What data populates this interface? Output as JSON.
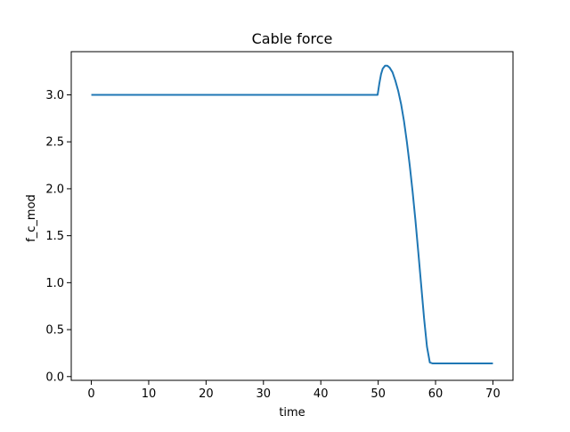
{
  "chart_data": {
    "type": "line",
    "title": "Cable force",
    "xlabel": "time",
    "ylabel": "f_c_mod",
    "xlim": [
      -3.5,
      73.5
    ],
    "ylim": [
      -0.04,
      3.46
    ],
    "xticks": [
      0,
      10,
      20,
      30,
      40,
      50,
      60,
      70
    ],
    "xtick_labels": [
      "0",
      "10",
      "20",
      "30",
      "40",
      "50",
      "60",
      "70"
    ],
    "yticks": [
      0.0,
      0.5,
      1.0,
      1.5,
      2.0,
      2.5,
      3.0
    ],
    "ytick_labels": [
      "0.0",
      "0.5",
      "1.0",
      "1.5",
      "2.0",
      "2.5",
      "3.0"
    ],
    "grid": false,
    "legend": false,
    "series": [
      {
        "color": "#1f77b4",
        "x": [
          0,
          10,
          20,
          30,
          40,
          49.9,
          50.2,
          50.5,
          50.8,
          51.2,
          51.6,
          52.0,
          52.5,
          53.0,
          53.5,
          54.0,
          54.5,
          55.0,
          55.5,
          56.0,
          56.5,
          57.0,
          57.5,
          58.0,
          58.5,
          59.0,
          59.5,
          60.0,
          62.0,
          64.0,
          66.0,
          68.0,
          70.0
        ],
        "y": [
          3.0,
          3.0,
          3.0,
          3.0,
          3.0,
          3.0,
          3.12,
          3.22,
          3.28,
          3.31,
          3.31,
          3.29,
          3.24,
          3.15,
          3.04,
          2.9,
          2.72,
          2.5,
          2.25,
          1.97,
          1.66,
          1.32,
          0.97,
          0.62,
          0.32,
          0.15,
          0.14,
          0.14,
          0.14,
          0.14,
          0.14,
          0.14,
          0.14
        ]
      }
    ]
  }
}
